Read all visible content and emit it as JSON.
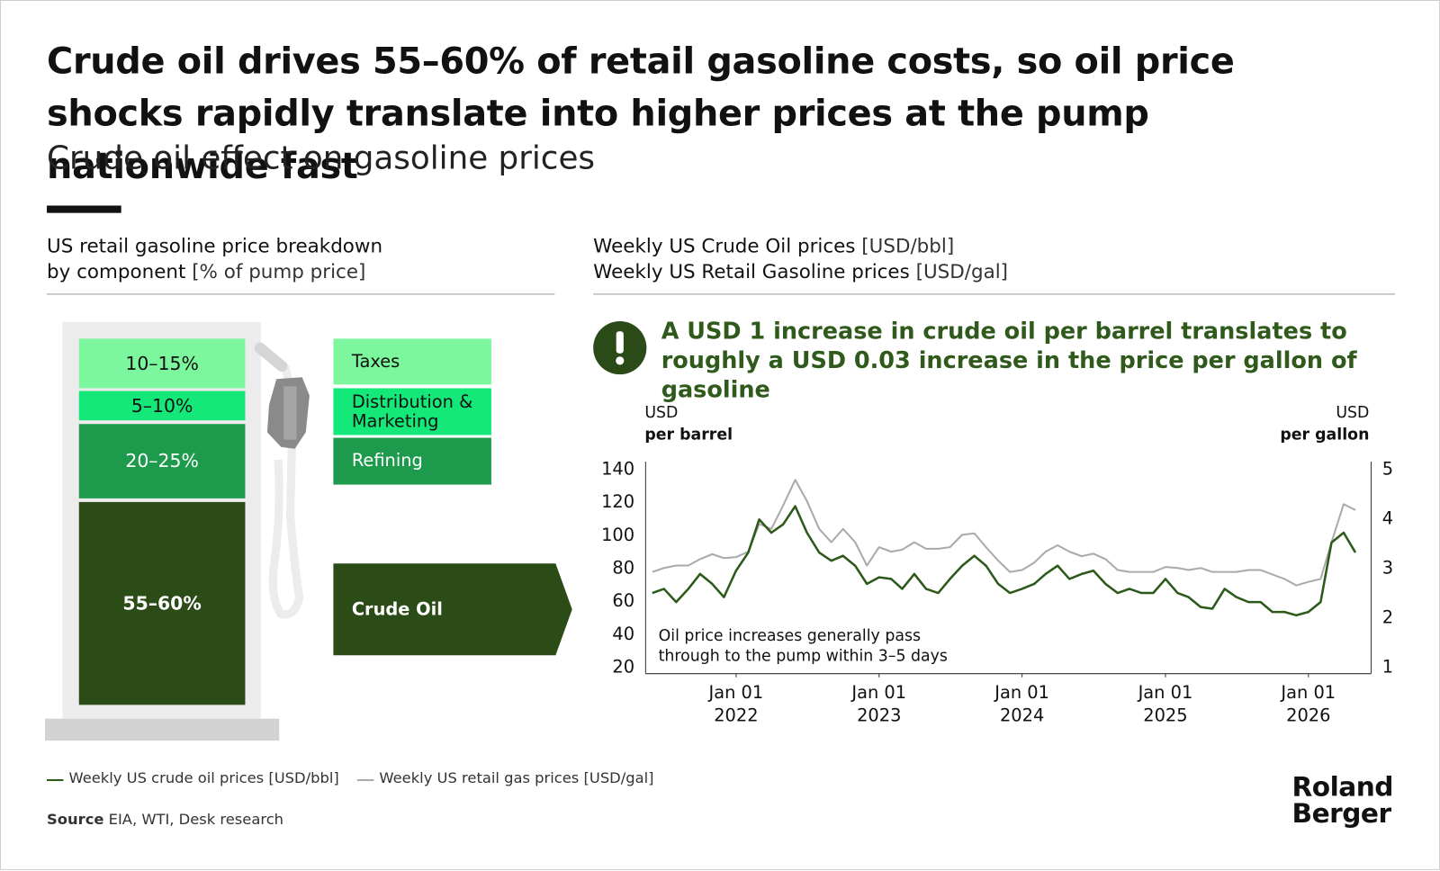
{
  "header": {
    "title": "Crude oil drives 55–60% of retail gasoline costs, so oil price shocks rapidly translate into higher prices at the pump nationwide fast",
    "subtitle": "Crude oil effect on gasoline prices"
  },
  "breakdown": {
    "title_lines": [
      "US retail gasoline price breakdown",
      "by component"
    ],
    "unit": "[% of pump price]",
    "segments": [
      {
        "range": "10–15%",
        "label": "Taxes",
        "color": "#7cf79e"
      },
      {
        "range": "5–10%",
        "label": "Distribution & Marketing",
        "color": "#14e878"
      },
      {
        "range": "20–25%",
        "label": "Refining",
        "color": "#1d9a4c"
      },
      {
        "range": "55–60%",
        "label": "Crude Oil",
        "color": "#2b4b17"
      }
    ]
  },
  "callout": "A USD 1 increase in crude oil per barrel translates to roughly a USD 0.03 increase in the price per gallon of gasoline",
  "chart_data": {
    "type": "line",
    "title_lines": [
      {
        "text": "Weekly US Crude Oil prices",
        "unit": "[USD/bbl]"
      },
      {
        "text": "Weekly US Retail Gasoline prices",
        "unit": "[USD/gal]"
      }
    ],
    "y_label": {
      "unit": "USD",
      "text": "per barrel"
    },
    "y2_label": {
      "unit": "USD",
      "text": "per gallon"
    },
    "annotation": "Oil price increases generally pass through to the pump within 3–5 days",
    "x": [
      "2021-06-01",
      "2021-07-01",
      "2021-08-01",
      "2021-09-01",
      "2021-10-01",
      "2021-11-01",
      "2021-12-01",
      "2022-01-01",
      "2022-02-01",
      "2022-03-01",
      "2022-04-01",
      "2022-05-01",
      "2022-06-01",
      "2022-07-01",
      "2022-08-01",
      "2022-09-01",
      "2022-10-01",
      "2022-11-01",
      "2022-12-01",
      "2023-01-01",
      "2023-02-01",
      "2023-03-01",
      "2023-04-01",
      "2023-05-01",
      "2023-06-01",
      "2023-07-01",
      "2023-08-01",
      "2023-09-01",
      "2023-10-01",
      "2023-11-01",
      "2023-12-01",
      "2024-01-01",
      "2024-02-01",
      "2024-03-01",
      "2024-04-01",
      "2024-05-01",
      "2024-06-01",
      "2024-07-01",
      "2024-08-01",
      "2024-09-01",
      "2024-10-01",
      "2024-11-01",
      "2024-12-01",
      "2025-01-01",
      "2025-02-01",
      "2025-03-01",
      "2025-04-01",
      "2025-05-01",
      "2025-06-01",
      "2025-07-01",
      "2025-08-01",
      "2025-09-01",
      "2025-10-01",
      "2025-11-01",
      "2025-12-01",
      "2026-01-01",
      "2026-02-01",
      "2026-03-01",
      "2026-04-01",
      "2026-05-01"
    ],
    "series": [
      {
        "name": "Weekly US crude oil prices [USD/bbl]",
        "color": "#2d5a1b",
        "values": [
          65.5,
          68,
          60,
          68,
          77,
          71,
          63,
          79,
          90,
          110,
          102,
          107,
          118,
          102,
          90,
          85,
          88,
          82,
          71,
          75,
          74,
          68,
          77,
          68,
          65.5,
          74,
          82,
          88,
          82,
          71,
          65.5,
          68,
          71,
          77,
          82,
          74,
          77,
          79,
          71,
          65.5,
          68,
          65.5,
          65.5,
          74,
          65.5,
          63,
          57,
          56,
          68,
          63,
          60,
          60,
          54,
          54,
          52,
          54,
          60,
          96,
          102,
          90
        ]
      },
      {
        "name": "Weekly US retail gas prices [USD/gal]",
        "color": "#aaaaaa",
        "axis": "y2",
        "values": [
          2.94,
          3.02,
          3.07,
          3.07,
          3.2,
          3.3,
          3.22,
          3.24,
          3.35,
          3.91,
          3.81,
          4.28,
          4.8,
          4.37,
          3.81,
          3.54,
          3.81,
          3.54,
          3.07,
          3.44,
          3.35,
          3.39,
          3.54,
          3.41,
          3.41,
          3.44,
          3.69,
          3.72,
          3.44,
          3.17,
          2.94,
          2.98,
          3.13,
          3.35,
          3.48,
          3.35,
          3.26,
          3.31,
          3.2,
          2.98,
          2.94,
          2.94,
          2.94,
          3.04,
          3.02,
          2.98,
          3.02,
          2.94,
          2.94,
          2.94,
          2.98,
          2.98,
          2.89,
          2.8,
          2.67,
          2.74,
          2.8,
          3.54,
          4.31,
          4.19
        ]
      }
    ],
    "xlim": [
      "2021-05-15",
      "2026-06-10"
    ],
    "xticks": [
      {
        "value": "2022-01-01",
        "label": "Jan 01 2022"
      },
      {
        "value": "2023-01-01",
        "label": "Jan 01 2023"
      },
      {
        "value": "2024-01-01",
        "label": "Jan 01 2024"
      },
      {
        "value": "2025-01-01",
        "label": "Jan 01 2025"
      },
      {
        "value": "2026-01-01",
        "label": "Jan 01 2026"
      }
    ],
    "ylim": [
      20,
      140
    ],
    "yticks": [
      20,
      40,
      60,
      80,
      100,
      120,
      140
    ],
    "y2lim": [
      1,
      5
    ],
    "y2ticks": [
      1,
      2,
      3,
      4,
      5
    ],
    "grid": false
  },
  "source": {
    "label": "Source",
    "text": "EIA, WTI, Desk research"
  },
  "logo": [
    "Roland",
    "Berger"
  ]
}
